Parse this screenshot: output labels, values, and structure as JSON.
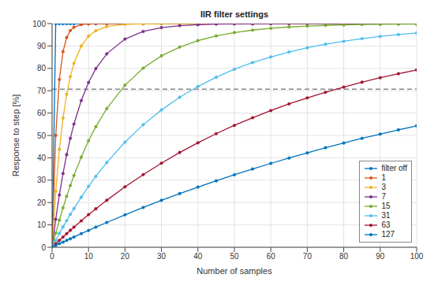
{
  "chart_data": {
    "type": "line",
    "title": "IIR filter settings",
    "x_label": "Number of samples",
    "y_label": "Response to step [%]",
    "x": [
      0,
      1,
      2,
      3,
      4,
      5,
      6,
      8,
      10,
      12,
      15,
      20,
      25,
      30,
      35,
      40,
      45,
      50,
      55,
      60,
      65,
      70,
      75,
      80,
      85,
      90,
      95,
      100
    ],
    "series": [
      {
        "name": "filter off",
        "color": "#0072BD",
        "values": [
          0,
          100,
          100,
          100,
          100,
          100,
          100,
          100,
          100,
          100,
          100,
          100,
          100,
          100,
          100,
          100,
          100,
          100,
          100,
          100,
          100,
          100,
          100,
          100,
          100,
          100,
          100,
          100
        ]
      },
      {
        "name": "1",
        "color": "#D95319",
        "values": [
          0,
          50,
          75,
          87.5,
          93.8,
          96.9,
          98.4,
          99.6,
          99.9,
          100,
          100,
          100,
          100,
          100,
          100,
          100,
          100,
          100,
          100,
          100,
          100,
          100,
          100,
          100,
          100,
          100,
          100,
          100
        ]
      },
      {
        "name": "3",
        "color": "#EDB120",
        "values": [
          0,
          25,
          43.8,
          57.8,
          68.4,
          76.3,
          82.2,
          90,
          94.4,
          96.8,
          98.7,
          99.7,
          99.9,
          100,
          100,
          100,
          100,
          100,
          100,
          100,
          100,
          100,
          100,
          100,
          100,
          100,
          100,
          100
        ]
      },
      {
        "name": "7",
        "color": "#7E2F8E",
        "values": [
          0,
          12.5,
          23.4,
          33,
          41.4,
          48.7,
          55.1,
          65.6,
          73.7,
          79.9,
          86.5,
          93.1,
          96.5,
          98.2,
          99.1,
          99.5,
          99.8,
          99.9,
          99.9,
          100,
          100,
          100,
          100,
          100,
          100,
          100,
          100,
          100
        ]
      },
      {
        "name": "15",
        "color": "#77AC30",
        "values": [
          0,
          6.3,
          12.1,
          17.6,
          22.8,
          27.6,
          32.1,
          40.3,
          47.6,
          53.9,
          62,
          72.5,
          80.1,
          85.6,
          89.5,
          92.4,
          94.5,
          96,
          97.1,
          97.9,
          98.5,
          98.9,
          99.2,
          99.4,
          99.6,
          99.7,
          99.8,
          99.8
        ]
      },
      {
        "name": "31",
        "color": "#4DBEEE",
        "values": [
          0,
          3.1,
          6.2,
          9.1,
          11.9,
          14.7,
          17.3,
          22.4,
          27.2,
          31.7,
          37.9,
          47,
          54.8,
          61.4,
          67.1,
          71.9,
          76,
          79.6,
          82.6,
          85.1,
          87.3,
          89.2,
          90.8,
          92.1,
          93.3,
          94.3,
          95.1,
          95.8
        ]
      },
      {
        "name": "63",
        "color": "#A2142F",
        "values": [
          0,
          1.6,
          3.1,
          4.6,
          6.1,
          7.6,
          9,
          11.8,
          14.6,
          17.2,
          21,
          27,
          32.5,
          37.6,
          42.4,
          46.7,
          50.8,
          54.5,
          57.9,
          61.1,
          64.1,
          66.8,
          69.3,
          71.6,
          73.8,
          75.8,
          77.6,
          79.3
        ]
      },
      {
        "name": "127",
        "color": "#0072BD",
        "values": [
          0,
          0.8,
          1.6,
          2.3,
          3.1,
          3.8,
          4.6,
          6.1,
          7.5,
          9,
          11.1,
          14.5,
          17.8,
          21,
          24,
          26.9,
          29.7,
          32.4,
          35,
          37.5,
          39.9,
          42.2,
          44.5,
          46.6,
          48.7,
          50.6,
          52.5,
          54.3
        ]
      }
    ],
    "xlim": [
      0,
      100
    ],
    "xticks": [
      0,
      10,
      20,
      30,
      40,
      50,
      60,
      70,
      80,
      90,
      100
    ],
    "ylim": [
      0,
      100
    ],
    "yticks": [
      0,
      10,
      20,
      30,
      40,
      50,
      60,
      70,
      80,
      90,
      100
    ],
    "reference_line": 70.7,
    "grid": true,
    "legend": "lower right",
    "marker": "circle",
    "line_style": "solid"
  }
}
